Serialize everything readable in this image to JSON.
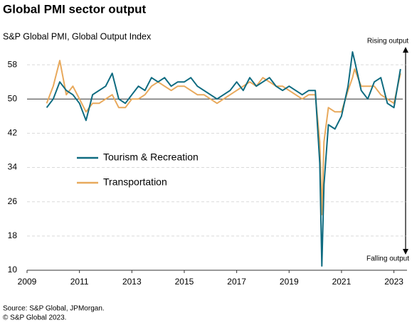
{
  "chart_data": {
    "type": "line",
    "title": "Global PMI sector output",
    "subtitle": "S&P Global PMI, Global Output Index",
    "annotations": [
      "Rising output",
      "Falling output"
    ],
    "source": [
      "Source: S&P Global, JPMorgan.",
      "© S&P Global 2023."
    ],
    "x": [
      2009.75,
      2010.0,
      2010.25,
      2010.5,
      2010.75,
      2011.0,
      2011.25,
      2011.5,
      2011.75,
      2012.0,
      2012.25,
      2012.5,
      2012.75,
      2013.0,
      2013.25,
      2013.5,
      2013.75,
      2014.0,
      2014.25,
      2014.5,
      2014.75,
      2015.0,
      2015.25,
      2015.5,
      2015.75,
      2016.0,
      2016.25,
      2016.5,
      2016.75,
      2017.0,
      2017.25,
      2017.5,
      2017.75,
      2018.0,
      2018.25,
      2018.5,
      2018.75,
      2019.0,
      2019.25,
      2019.5,
      2019.75,
      2020.0,
      2020.17,
      2020.25,
      2020.33,
      2020.5,
      2020.75,
      2021.0,
      2021.25,
      2021.42,
      2021.5,
      2021.75,
      2022.0,
      2022.25,
      2022.5,
      2022.75,
      2023.0,
      2023.25
    ],
    "series": [
      {
        "name": "Tourism & Recreation",
        "color": "#0e6b80",
        "values": [
          48,
          50,
          54,
          52,
          51,
          49,
          45,
          51,
          52,
          53,
          56,
          50,
          49,
          51,
          53,
          52,
          55,
          54,
          55,
          53,
          54,
          54,
          55,
          53,
          52,
          51,
          50,
          51,
          52,
          54,
          52,
          55,
          53,
          54,
          55,
          53,
          52,
          53,
          52,
          51,
          52,
          52,
          35,
          11,
          30,
          44,
          43,
          46,
          53,
          61,
          59,
          52,
          50,
          54,
          55,
          49,
          48,
          57
        ]
      },
      {
        "name": "Transportation",
        "color": "#e8a95c",
        "values": [
          49,
          53,
          59,
          51,
          53,
          50,
          47,
          49,
          49,
          50,
          51,
          48,
          48,
          50,
          50,
          51,
          53,
          54,
          53,
          52,
          53,
          53,
          52,
          51,
          51,
          50,
          49,
          50,
          51,
          52,
          53,
          54,
          53,
          55,
          54,
          53,
          53,
          52,
          51,
          50,
          51,
          51,
          40,
          23,
          40,
          48,
          47,
          47,
          52,
          55,
          57,
          53,
          53,
          53,
          51,
          50,
          49,
          56
        ]
      }
    ],
    "xlim": [
      2009,
      2023.5
    ],
    "xticks": [
      2009,
      2011,
      2013,
      2015,
      2017,
      2019,
      2021,
      2023
    ],
    "ylim": [
      10,
      63
    ],
    "yticks": [
      10,
      18,
      26,
      34,
      42,
      50,
      58
    ],
    "reference_line": 50,
    "grid": true
  }
}
